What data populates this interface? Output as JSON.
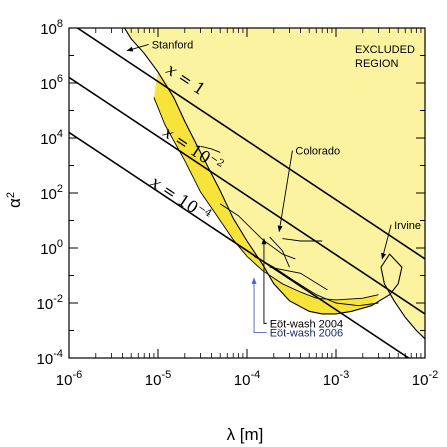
{
  "chart_data": {
    "type": "line",
    "xlabel": "λ [m]",
    "ylabel": "α²",
    "xscale": "log",
    "yscale": "log",
    "xlim": [
      1e-06,
      0.01
    ],
    "ylim": [
      0.0001,
      100000000.0
    ],
    "x_ticks": [
      {
        "value": 1e-06,
        "base": "10",
        "exp": "-6"
      },
      {
        "value": 1e-05,
        "base": "10",
        "exp": "-5"
      },
      {
        "value": 0.0001,
        "base": "10",
        "exp": "-4"
      },
      {
        "value": 0.001,
        "base": "10",
        "exp": "-3"
      },
      {
        "value": 0.01,
        "base": "10",
        "exp": "-2"
      }
    ],
    "y_ticks": [
      {
        "value": 0.0001,
        "base": "10",
        "exp": "-4"
      },
      {
        "value": 0.01,
        "base": "10",
        "exp": "-2"
      },
      {
        "value": 1.0,
        "base": "10",
        "exp": "0"
      },
      {
        "value": 100.0,
        "base": "10",
        "exp": "2"
      },
      {
        "value": 10000.0,
        "base": "10",
        "exp": "4"
      },
      {
        "value": 1000000.0,
        "base": "10",
        "exp": "6"
      },
      {
        "value": 100000000.0,
        "base": "10",
        "exp": "8"
      }
    ],
    "excluded_region_label": [
      "EXCLUDED",
      "REGION"
    ],
    "colors": {
      "excluded_fill": "#fbf3a0",
      "band_fill": "#f7e33a",
      "line": "#000000",
      "arrow_blue": "#5060c0"
    },
    "diagonal_lines": [
      {
        "label": {
          "pre": "x",
          "mid": " = 1",
          "sup": ""
        },
        "points": [
          [
            1e-06,
            160000000.0
          ],
          [
            0.01,
            0.4
          ]
        ]
      },
      {
        "label": {
          "pre": "x",
          "mid": " = 10",
          "sup": "−2"
        },
        "points": [
          [
            1e-06,
            1600000.0
          ],
          [
            0.01,
            0.004
          ]
        ]
      },
      {
        "label": {
          "pre": "x",
          "mid": " = 10",
          "sup": "−4"
        },
        "points": [
          [
            1e-06,
            16000.0
          ],
          [
            0.01,
            4e-05
          ]
        ]
      }
    ],
    "excluded_boundary": [
      [
        4.2e-06,
        100000000.0
      ],
      [
        5e-06,
        40000000.0
      ],
      [
        7e-06,
        12000000.0
      ],
      [
        1e-05,
        2500000.0
      ],
      [
        1.5e-05,
        300000.0
      ],
      [
        2e-05,
        40000.0
      ],
      [
        3e-05,
        3000.0
      ],
      [
        5e-05,
        120.0
      ],
      [
        7e-05,
        12.0
      ],
      [
        0.0001,
        1.8
      ],
      [
        0.00015,
        0.25
      ],
      [
        0.0002,
        0.05
      ],
      [
        0.0003,
        0.012
      ],
      [
        0.0005,
        0.005
      ],
      [
        0.0007,
        0.004
      ],
      [
        0.001,
        0.004
      ],
      [
        0.0015,
        0.005
      ],
      [
        0.0025,
        0.008
      ],
      [
        0.004,
        0.02
      ],
      [
        0.005,
        0.05
      ],
      [
        0.0055,
        0.2
      ],
      [
        0.004,
        0.6
      ],
      [
        0.0032,
        0.2
      ],
      [
        0.0035,
        0.05
      ],
      [
        0.0045,
        0.012
      ],
      [
        0.006,
        0.003
      ],
      [
        0.008,
        0.001
      ],
      [
        0.01,
        0.0005
      ]
    ],
    "eotwash_2006_upper": [
      [
        9e-06,
        300000.0
      ],
      [
        1.2e-05,
        30000.0
      ],
      [
        2e-05,
        1500.0
      ],
      [
        3e-05,
        110.0
      ],
      [
        5e-05,
        10.0
      ],
      [
        7e-05,
        2
      ],
      [
        0.0001,
        0.5
      ],
      [
        0.00015,
        0.15
      ],
      [
        0.00025,
        0.05
      ],
      [
        0.0004,
        0.025
      ],
      [
        0.0006,
        0.015
      ],
      [
        0.001,
        0.013
      ],
      [
        0.002,
        0.015
      ],
      [
        0.003,
        0.02
      ]
    ],
    "colorado_curve": [
      [
        0.00018,
        2.5
      ],
      [
        0.00025,
        0.8
      ],
      [
        0.0003,
        0.2
      ]
    ],
    "colorado_curve2": [
      [
        0.00018,
        0.2
      ],
      [
        0.0004,
        0.12
      ],
      [
        0.0008,
        0.03
      ]
    ],
    "eotwash_2004_curve": [
      [
        0.00012,
        0.5
      ],
      [
        0.0002,
        0.2
      ],
      [
        0.00035,
        0.06
      ],
      [
        0.0006,
        0.02
      ],
      [
        0.001,
        0.01
      ],
      [
        0.0018,
        0.008
      ],
      [
        0.003,
        0.01
      ]
    ],
    "misc_curves": [
      [
        [
          5e-05,
          40.0
        ],
        [
          8e-05,
          15.0
        ],
        [
          0.00015,
          2
        ],
        [
          0.00025,
          0.6
        ],
        [
          0.00035,
          0.4
        ]
      ],
      [
        [
          0.00025,
          2.2
        ],
        [
          0.0004,
          1.8
        ],
        [
          0.0007,
          1.8
        ]
      ],
      [
        [
          3e-05,
          5000.0
        ],
        [
          4e-05,
          4000.0
        ],
        [
          5e-05,
          3000.0
        ]
      ]
    ],
    "annotations": [
      {
        "text": "Stanford",
        "x": 8.5e-06,
        "y": 18000000.0,
        "arrow_to": [
          4.5e-06,
          15000000.0
        ],
        "color": "black"
      },
      {
        "text": "Colorado",
        "x": 0.00035,
        "y": 2500.0,
        "arrow_to": [
          0.00023,
          4
        ],
        "color": "black"
      },
      {
        "text": "Irvine",
        "x": 0.0045,
        "y": 5,
        "arrow_to": [
          0.0033,
          0.4
        ],
        "color": "black"
      },
      {
        "text": "Eöt-wash 2004",
        "x": 0.00018,
        "y": 0.0013,
        "arrow_to": [
          0.000155,
          2.2
        ],
        "color": "black"
      },
      {
        "text": "Eöt-wash 2006",
        "x": 0.00018,
        "y": 0.0006,
        "arrow_to": [
          0.00012,
          0.08
        ],
        "color": "blue"
      }
    ]
  }
}
